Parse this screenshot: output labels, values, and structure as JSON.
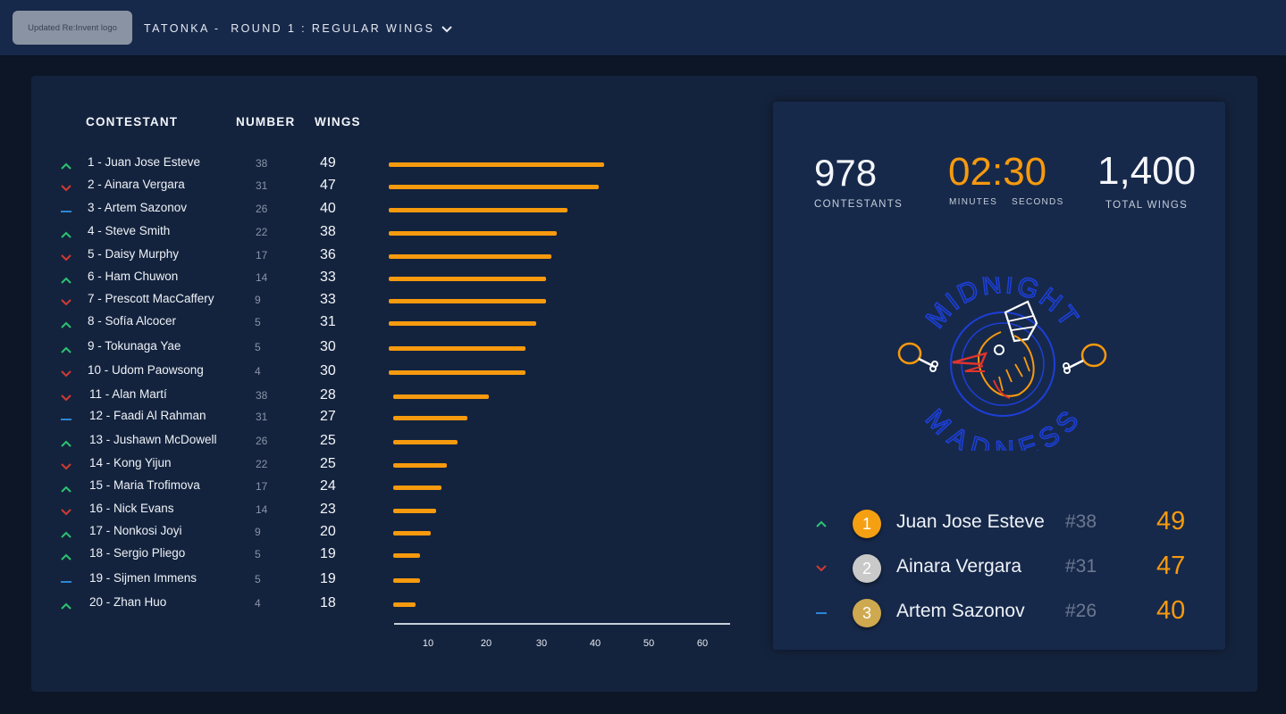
{
  "header": {
    "logo_label": "Updated Re:Invent logo",
    "round_title": "TATONKA -  ROUND 1 : REGULAR WINGS"
  },
  "table": {
    "headers": {
      "contestant": "CONTESTANT",
      "number": "NUMBER",
      "wings": "WINGS"
    },
    "rows": [
      {
        "name": "1 - Juan Jose Esteve",
        "number": "38",
        "wings": "49",
        "trend": "up"
      },
      {
        "name": "2 - Ainara Vergara",
        "number": "31",
        "wings": "47",
        "trend": "down"
      },
      {
        "name": "3 - Artem Sazonov",
        "number": "26",
        "wings": "40",
        "trend": "same"
      },
      {
        "name": "4 - Steve Smith",
        "number": "22",
        "wings": "38",
        "trend": "up"
      },
      {
        "name": "5 - Daisy Murphy",
        "number": "17",
        "wings": "36",
        "trend": "down"
      },
      {
        "name": "6 - Ham Chuwon",
        "number": "14",
        "wings": "33",
        "trend": "up"
      },
      {
        "name": "7 - Prescott MacCaffery",
        "number": "9",
        "wings": "33",
        "trend": "down"
      },
      {
        "name": "8 - Sofía Alcocer",
        "number": "5",
        "wings": "31",
        "trend": "up"
      },
      {
        "name": "9 - Tokunaga Yae",
        "number": "5",
        "wings": "30",
        "trend": "up"
      },
      {
        "name": "10 - Udom Paowsong",
        "number": "4",
        "wings": "30",
        "trend": "down"
      },
      {
        "name": "11 - Alan Martí",
        "number": "38",
        "wings": "28",
        "trend": "down"
      },
      {
        "name": "12 - Faadi Al Rahman",
        "number": "31",
        "wings": "27",
        "trend": "same"
      },
      {
        "name": "13 - Jushawn McDowell",
        "number": "26",
        "wings": "25",
        "trend": "up"
      },
      {
        "name": "14 - Kong Yijun",
        "number": "22",
        "wings": "25",
        "trend": "down"
      },
      {
        "name": "15 - Maria Trofimova",
        "number": "17",
        "wings": "24",
        "trend": "up"
      },
      {
        "name": "16 - Nick Evans",
        "number": "14",
        "wings": "23",
        "trend": "down"
      },
      {
        "name": "17 - Nonkosi Joyi",
        "number": "9",
        "wings": "20",
        "trend": "up"
      },
      {
        "name": "18 - Sergio Pliego",
        "number": "5",
        "wings": "19",
        "trend": "up"
      },
      {
        "name": "19 - Sijmen Immens",
        "number": "5",
        "wings": "19",
        "trend": "same"
      },
      {
        "name": "20 - Zhan Huo",
        "number": "4",
        "wings": "18",
        "trend": "up"
      }
    ]
  },
  "chart_data": {
    "type": "bar",
    "categories": [
      "1 - Juan Jose Esteve",
      "2 - Ainara Vergara",
      "3 - Artem Sazonov",
      "4 - Steve Smith",
      "5 - Daisy Murphy",
      "6 - Ham Chuwon",
      "7 - Prescott MacCaffery",
      "8 - Sofía Alcocer",
      "9 - Tokunaga Yae",
      "10 - Udom Paowsong",
      "11 - Alan Martí",
      "12 - Faadi Al Rahman",
      "13 - Jushawn McDowell",
      "14 - Kong Yijun",
      "15 - Maria Trofimova",
      "16 - Nick Evans",
      "17 - Nonkosi Joyi",
      "18 - Sergio Pliego",
      "19 - Sijmen Immens",
      "20 - Zhan Huo"
    ],
    "values": [
      40,
      39,
      33,
      31,
      30,
      29,
      29,
      27,
      25,
      25,
      18,
      14,
      12,
      10,
      9,
      8,
      7,
      5,
      5,
      4
    ],
    "x_ticks": [
      "10",
      "20",
      "30",
      "40",
      "50",
      "60"
    ],
    "xlim": [
      0,
      64
    ],
    "orientation": "horizontal",
    "grid": false
  },
  "stats": {
    "contestants_value": "978",
    "contestants_label": "CONTESTANTS",
    "timer_minutes": "02",
    "timer_sep": ":",
    "timer_seconds": "30",
    "minutes_label": "MINUTES",
    "seconds_label": "SECONDS",
    "total_wings_value": "1,400",
    "total_wings_label": "TOTAL WINGS"
  },
  "logo": {
    "top_text": "MIDNIGHT",
    "bottom_text": "MADNESS"
  },
  "podium": [
    {
      "rank": "1",
      "name": "Juan Jose Esteve",
      "number": "#38",
      "wings": "49",
      "trend": "up",
      "medal_color": "#f5a012"
    },
    {
      "rank": "2",
      "name": "Ainara Vergara",
      "number": "#31",
      "wings": "47",
      "trend": "down",
      "medal_color": "#c9c9c9"
    },
    {
      "rank": "3",
      "name": "Artem Sazonov",
      "number": "#26",
      "wings": "40",
      "trend": "same",
      "medal_color": "#cfa94f"
    }
  ],
  "colors": {
    "accent": "#f79a0e",
    "trend_up": "#2bc473",
    "trend_down": "#d23a32",
    "trend_same": "#2b86d6",
    "logo_blue": "#1c3fd8"
  }
}
